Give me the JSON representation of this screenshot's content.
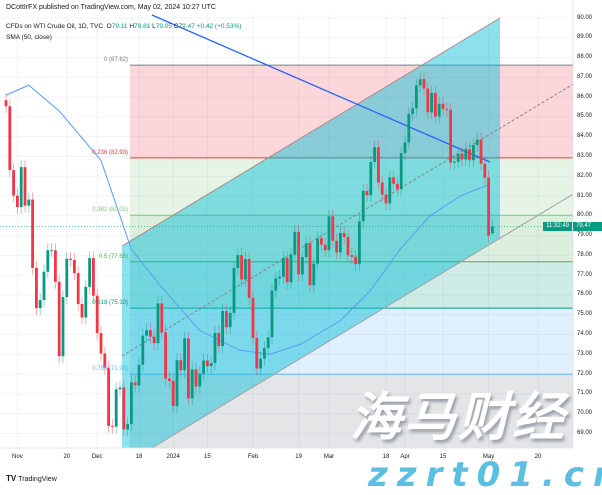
{
  "header": {
    "published": "DCottIrFX published on TradingView.com, May 02, 2024 10:27 UTC"
  },
  "legend": {
    "symbol": "CFDs on WTI Crude Oil, 1D, TVC",
    "o_label": "O",
    "o": "79.11",
    "h_label": "H",
    "h": "79.81",
    "l_label": "L",
    "l": "79.05",
    "c_label": "C",
    "c": "79.47",
    "change": "+0.42 (+0.53%)",
    "indicator": "SMA (50, close)"
  },
  "footer": {
    "logo": "TradingView",
    "logo_mark": "TV"
  },
  "watermark": {
    "cn": "海马财经",
    "url": "zzrt01.cn"
  },
  "colors": {
    "up": "#089981",
    "down": "#f23645",
    "sma": "#5b9cf6",
    "trendline": "#2962ff",
    "channel": "#00bcd4"
  },
  "chart_data": {
    "type": "candlestick",
    "title": "CFDs on WTI Crude Oil, 1D, TVC",
    "close": [
      85.54,
      82.31,
      81.02,
      80.44,
      82.46,
      80.51,
      80.82,
      77.37,
      75.33,
      75.74,
      77.17,
      78.26,
      78.26,
      76.66,
      72.9,
      75.89,
      77.83,
      77.77,
      77.1,
      75.54,
      74.86,
      76.41,
      77.86,
      75.96,
      74.07,
      73.04,
      72.32,
      69.38,
      69.34,
      71.23,
      71.32,
      69.2,
      69.47,
      71.58,
      71.43,
      72.47,
      73.94,
      74.22,
      73.89,
      73.56,
      75.57,
      74.11,
      71.77,
      71.65,
      70.38,
      72.7,
      72.19,
      73.81,
      70.77,
      72.24,
      71.37,
      72.02,
      72.68,
      72.4,
      72.56,
      74.08,
      73.41,
      75.19,
      74.37,
      75.09,
      77.36,
      78.01,
      76.78,
      77.82,
      75.85,
      73.82,
      72.28,
      72.78,
      73.31,
      73.86,
      76.22,
      76.84,
      76.92,
      77.87,
      76.64,
      78.03,
      79.19,
      77.04,
      77.91,
      78.61,
      76.49,
      77.58,
      78.87,
      78.54,
      78.26,
      79.97,
      78.74,
      78.15,
      79.13,
      78.93,
      78.01,
      77.93,
      77.56,
      79.72,
      81.26,
      81.04,
      82.72,
      83.47,
      81.68,
      81.07,
      80.63,
      81.95,
      81.62,
      81.35,
      83.17,
      83.71,
      85.15,
      85.43,
      86.59,
      86.91,
      86.43,
      85.23,
      86.21,
      85.02,
      85.66,
      85.41,
      85.36,
      82.69,
      82.73,
      83.14,
      82.85,
      83.36,
      82.81,
      83.57,
      83.85,
      82.63,
      81.93,
      79.0,
      79.47
    ],
    "last": {
      "open": 79.11,
      "high": 79.81,
      "low": 79.05,
      "close": 79.47,
      "label": "79.47",
      "countdown": "11:32:49"
    },
    "y_ticks": [
      "90.00",
      "89.00",
      "88.00",
      "87.00",
      "86.00",
      "85.00",
      "84.00",
      "83.00",
      "82.00",
      "81.00",
      "80.00",
      "79.00",
      "78.00",
      "77.00",
      "76.00",
      "75.00",
      "74.00",
      "73.00",
      "72.00",
      "71.00",
      "70.00",
      "69.00"
    ],
    "ylim": [
      69,
      90
    ],
    "x_ticks": [
      "Nov",
      "20",
      "Dec",
      "18",
      "2024",
      "15",
      "Feb",
      "19",
      "Mar",
      "18",
      "Apr",
      "15",
      "May",
      "20"
    ],
    "grid": true,
    "fib": [
      {
        "ratio": "0",
        "price": 87.62,
        "label": "0 (87.62)",
        "color": "#787b86"
      },
      {
        "ratio": "0.236",
        "price": 82.93,
        "label": "0.236 (82.93)",
        "color": "#f23645"
      },
      {
        "ratio": "0.382",
        "price": 80.03,
        "label": "0.382 (80.03)",
        "color": "#81c784"
      },
      {
        "ratio": "0.5",
        "price": 77.68,
        "label": "0.5 (77.68)",
        "color": "#4caf50"
      },
      {
        "ratio": "0.618",
        "price": 75.33,
        "label": "0.618 (75.33)",
        "color": "#089981"
      },
      {
        "ratio": "0.786",
        "price": 71.99,
        "label": "0.786 (71.99)",
        "color": "#64b5f6"
      },
      {
        "ratio": "1",
        "price": 67.74,
        "label": "",
        "color": "#787b86"
      }
    ],
    "indicator": "SMA (50, close)"
  }
}
